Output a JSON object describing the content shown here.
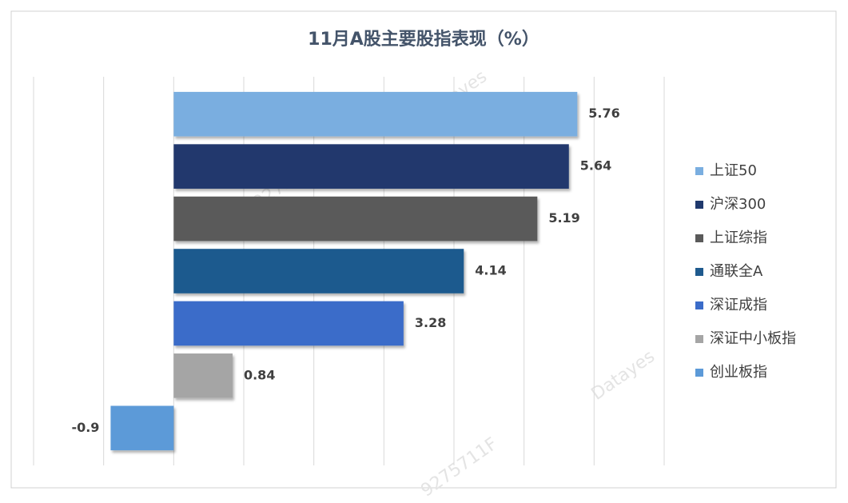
{
  "chart_data": {
    "type": "hbar",
    "title": "11月A股主要股指表现（%）",
    "series": [
      {
        "name": "上证50",
        "color": "#7aaee0",
        "values": [
          5.76
        ]
      },
      {
        "name": "沪深300",
        "color": "#20396d",
        "values": [
          5.64
        ]
      },
      {
        "name": "上证综指",
        "color": "#5a5a5a",
        "values": [
          5.19
        ]
      },
      {
        "name": "通联全A",
        "color": "#1f5a8e",
        "values": [
          4.14
        ]
      },
      {
        "name": "深证成指",
        "color": "#3b6cc9",
        "values": [
          3.28
        ]
      },
      {
        "name": "深证中小板指",
        "color": "#a5a5a5",
        "values": [
          0.84
        ]
      },
      {
        "name": "创业板指",
        "color": "#5c9ad8",
        "values": [
          -0.9
        ]
      }
    ],
    "xlim": [
      -2,
      7
    ],
    "xticks": [
      -2,
      -1,
      0,
      1,
      2,
      3,
      4,
      5,
      6,
      7
    ],
    "grid": true,
    "legend": "right",
    "watermarks": [
      "Datayes",
      "9275711F"
    ]
  }
}
